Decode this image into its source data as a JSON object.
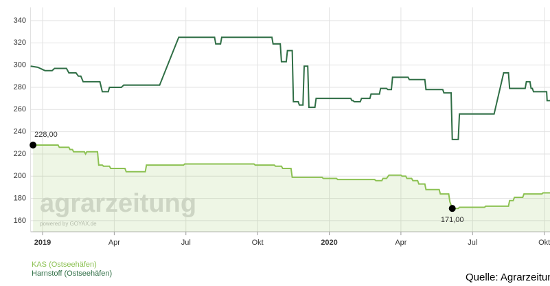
{
  "chart_data": {
    "type": "line",
    "watermark": "agrarzeitung",
    "watermark_sub": "powered by GOYAX.de",
    "source": "Quelle: Agrarzeitung",
    "xlim": [
      -0.5,
      21.24
    ],
    "xticks": [
      {
        "value": 0,
        "label": "2019"
      },
      {
        "value": 3,
        "label": "Apr"
      },
      {
        "value": 6,
        "label": "Jul"
      },
      {
        "value": 9,
        "label": "Okt"
      },
      {
        "value": 12,
        "label": "2020"
      },
      {
        "value": 15,
        "label": "Apr"
      },
      {
        "value": 18,
        "label": "Jul"
      },
      {
        "value": 21,
        "label": "Okt"
      }
    ],
    "ylim": [
      150,
      352
    ],
    "yticks": [
      160,
      180,
      200,
      220,
      240,
      260,
      280,
      300,
      320,
      340
    ],
    "grid": true,
    "series": [
      {
        "name": "KAS (Ostseehäfen)",
        "color": "#8cc152",
        "area": true,
        "x": [
          -0.4,
          0.65,
          0.7,
          1.1,
          1.15,
          1.25,
          1.3,
          1.75,
          1.8,
          1.85,
          2.3,
          2.35,
          2.5,
          2.55,
          2.8,
          2.85,
          3.45,
          3.5,
          4.3,
          4.35,
          5.9,
          5.95,
          8.85,
          8.9,
          9.7,
          9.75,
          10.0,
          10.05,
          10.4,
          10.45,
          11.7,
          11.75,
          12.3,
          12.35,
          13.9,
          13.95,
          14.2,
          14.25,
          14.4,
          14.5,
          15.0,
          15.05,
          15.2,
          15.25,
          15.45,
          15.5,
          15.7,
          15.75,
          16.0,
          16.05,
          16.6,
          16.65,
          17.0,
          17.05,
          17.15,
          17.4,
          17.45,
          18.5,
          18.55,
          19.5,
          19.55,
          19.7,
          19.75,
          20.1,
          20.15,
          20.9,
          20.95,
          21.24
        ],
        "values": [
          228,
          228,
          226,
          226,
          224,
          224,
          222,
          222,
          220,
          222,
          222,
          210,
          210,
          209,
          209,
          207,
          207,
          204,
          204,
          210,
          210,
          211,
          211,
          210,
          210,
          209,
          209,
          207,
          207,
          199,
          199,
          198,
          198,
          197,
          197,
          196,
          196,
          198,
          198,
          201,
          201,
          200,
          200,
          198,
          198,
          196,
          196,
          193,
          193,
          188,
          188,
          184,
          184,
          177,
          171,
          171,
          172,
          172,
          173,
          173,
          178,
          178,
          181,
          181,
          184,
          184,
          185,
          185
        ]
      },
      {
        "name": "Harnstoff (Ostseehäfen)",
        "color": "#2f6e45",
        "area": false,
        "x": [
          -0.5,
          -0.2,
          0.1,
          0.4,
          0.5,
          1.0,
          1.1,
          1.4,
          1.5,
          1.6,
          1.7,
          2.4,
          2.5,
          2.75,
          2.8,
          3.3,
          3.4,
          4.9,
          5.7,
          7.2,
          7.25,
          7.45,
          7.5,
          9.6,
          9.65,
          9.95,
          10.0,
          10.2,
          10.25,
          10.45,
          10.5,
          10.7,
          10.75,
          10.9,
          10.95,
          11.1,
          11.15,
          11.4,
          11.45,
          12.9,
          12.95,
          13.0,
          13.05,
          13.3,
          13.35,
          13.7,
          13.75,
          14.1,
          14.15,
          14.4,
          14.45,
          14.6,
          14.65,
          15.3,
          15.35,
          16.0,
          16.05,
          16.75,
          16.8,
          17.1,
          17.15,
          17.4,
          17.45,
          18.9,
          19.3,
          19.5,
          19.55,
          20.2,
          20.25,
          20.4,
          20.45,
          20.5,
          20.55,
          21.1,
          21.12,
          21.24
        ],
        "values": [
          299,
          298,
          295,
          295,
          297,
          297,
          293,
          293,
          290,
          290,
          285,
          285,
          276,
          276,
          280,
          280,
          282,
          282,
          325,
          325,
          319,
          319,
          325,
          325,
          319,
          319,
          303,
          303,
          313,
          313,
          267,
          267,
          264,
          264,
          299,
          299,
          262,
          262,
          270,
          270,
          268,
          268,
          267,
          267,
          270,
          270,
          274,
          274,
          279,
          279,
          278,
          278,
          289,
          289,
          287,
          287,
          278,
          278,
          275,
          275,
          233,
          233,
          256,
          256,
          293,
          293,
          279,
          279,
          285,
          285,
          279,
          279,
          276,
          276,
          268,
          268
        ]
      }
    ],
    "markers": [
      {
        "x": -0.4,
        "value": 228,
        "label": "228,00"
      },
      {
        "x": 17.15,
        "value": 171,
        "label": "171,00"
      }
    ]
  }
}
